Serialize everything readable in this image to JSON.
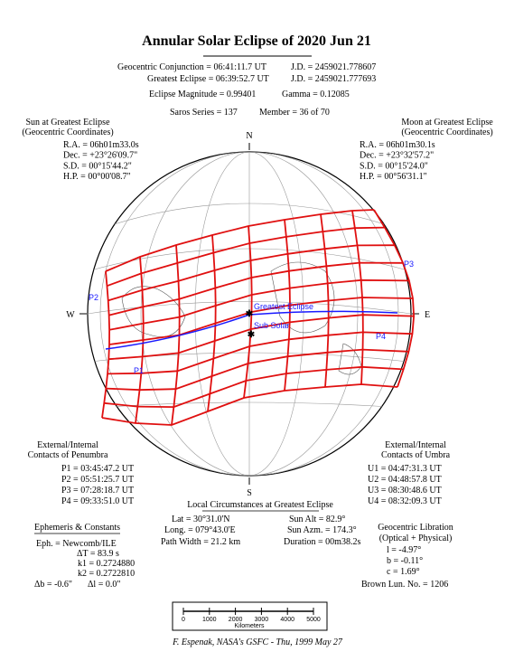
{
  "title": "Annular Solar Eclipse of 2020 Jun 21",
  "header": {
    "conjunction": "Geocentric Conjunction =  06:41:11.7 UT",
    "conjunction_jd": "J.D. =  2459021.778607",
    "greatest": "Greatest Eclipse =  06:39:52.7 UT",
    "greatest_jd": "J.D. =  2459021.777693",
    "magnitude": "Eclipse Magnitude =  0.99401",
    "gamma": "Gamma =  0.12085",
    "saros": "Saros Series = 137",
    "member": "Member = 36 of 70"
  },
  "sun": {
    "title": "Sun at Greatest Eclipse",
    "subtitle": "(Geocentric Coordinates)",
    "lines": [
      "R.A. =  06h01m33.0s",
      "Dec. = +23°26'09.7\"",
      "S.D. =  00°15'44.2\"",
      "H.P. =  00°00'08.7\""
    ]
  },
  "moon": {
    "title": "Moon at Greatest Eclipse",
    "subtitle": "(Geocentric Coordinates)",
    "lines": [
      "R.A. =  06h01m30.1s",
      "Dec. = +23°32'57.2\"",
      "S.D. =  00°15'24.0\"",
      "H.P. =  00°56'31.1\""
    ]
  },
  "globe": {
    "north": "N",
    "south": "S",
    "west": "W",
    "east": "E",
    "greatest_eclipse": "Greatest Eclipse",
    "sub_solar": "Sub Solar",
    "contacts": [
      "P1",
      "P2",
      "P3",
      "P4"
    ]
  },
  "penumbra": {
    "title": "External/Internal",
    "subtitle": "Contacts of Penumbra",
    "lines": [
      "P1 = 03:45:47.2 UT",
      "P2 = 05:51:25.7 UT",
      "P3 = 07:28:18.7 UT",
      "P4 = 09:33:51.0 UT"
    ]
  },
  "umbra": {
    "title": "External/Internal",
    "subtitle": "Contacts of Umbra",
    "lines": [
      "U1 = 04:47:31.3 UT",
      "U2 = 04:48:57.8 UT",
      "U3 = 08:30:48.6 UT",
      "U4 = 08:32:09.3 UT"
    ]
  },
  "local": {
    "title": "Local Circumstances at Greatest Eclipse",
    "lines": [
      "Lat =  30°31.0'N",
      "Sun Alt =  82.9°",
      "Long. = 079°43.0'E",
      "Sun Azm. = 174.3°",
      "Path Width =  21.2 km",
      "Duration =  00m38.2s"
    ]
  },
  "ephemeris": {
    "title": "Ephemeris & Constants",
    "lines": [
      "Eph. = Newcomb/ILE",
      "ΔT =   83.9 s",
      "k1 = 0.2724880",
      "k2 = 0.2722810",
      "Δb =  -0.6\"",
      "Δl =   0.0\""
    ]
  },
  "libration": {
    "title": "Geocentric Libration",
    "subtitle": "(Optical + Physical)",
    "lines": [
      "l =  -4.97°",
      "b =  -0.11°",
      "c =   1.69°"
    ],
    "brown": "Brown Lun. No. =  1206"
  },
  "scale": {
    "ticks": [
      0,
      1000,
      2000,
      3000,
      4000,
      5000
    ],
    "unit": "Kilometers"
  },
  "footer": "F. Espenak, NASA's GSFC - Thu, 1999 May 27"
}
